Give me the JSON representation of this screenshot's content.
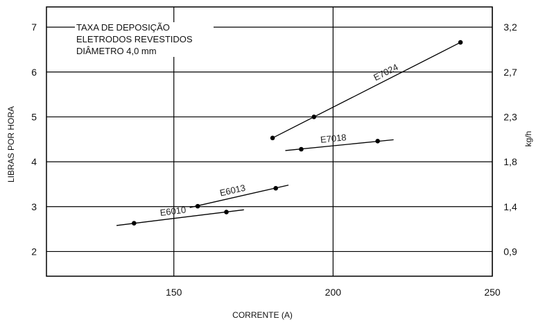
{
  "chart_data": {
    "type": "line",
    "title_lines": [
      "TAXA DE DEPOSIÇÃO",
      "ELETRODOS REVESTIDOS",
      "DIÂMETRO 4,0 mm"
    ],
    "xlabel": "CORRENTE (A)",
    "ylabel": "LIBRAS POR HORA",
    "y2label": "kg/h",
    "xlim": [
      110,
      250
    ],
    "ylim": [
      1.45,
      7.45
    ],
    "x_ticks": [
      150,
      200,
      250
    ],
    "y_ticks": [
      2,
      3,
      4,
      5,
      6,
      7
    ],
    "y2_ticks": [
      {
        "label": "0,9",
        "at": 2
      },
      {
        "label": "1,4",
        "at": 3
      },
      {
        "label": "1,8",
        "at": 4
      },
      {
        "label": "2,3",
        "at": 5
      },
      {
        "label": "2,7",
        "at": 6
      },
      {
        "label": "3,2",
        "at": 7
      }
    ],
    "grid": true,
    "series": [
      {
        "name": "E6010",
        "points": [
          [
            137.5,
            2.63
          ],
          [
            166.5,
            2.88
          ]
        ],
        "line": [
          [
            132,
            2.58
          ],
          [
            172,
            2.93
          ]
        ]
      },
      {
        "name": "E6013",
        "points": [
          [
            157.5,
            3.01
          ],
          [
            182,
            3.41
          ]
        ],
        "line": [
          [
            155,
            2.98
          ],
          [
            186,
            3.48
          ]
        ]
      },
      {
        "name": "E7018",
        "points": [
          [
            190,
            4.28
          ],
          [
            214,
            4.46
          ]
        ],
        "line": [
          [
            185,
            4.25
          ],
          [
            219,
            4.49
          ]
        ]
      },
      {
        "name": "E7024",
        "points": [
          [
            181,
            4.53
          ],
          [
            194,
            5.0
          ],
          [
            240,
            6.66
          ]
        ],
        "line": [
          [
            181,
            4.53
          ],
          [
            240,
            6.66
          ]
        ]
      }
    ]
  }
}
